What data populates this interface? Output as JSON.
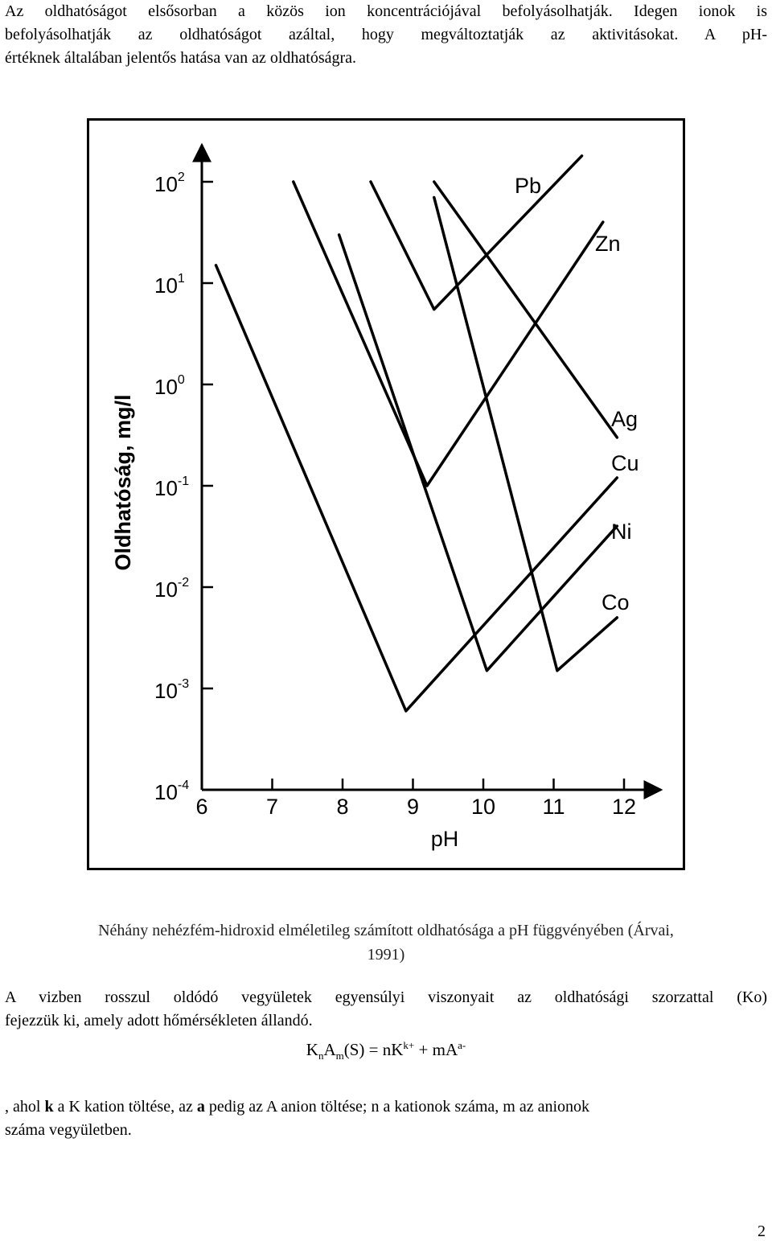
{
  "intro": {
    "line1": "Az oldhatóságot elsősorban a közös ion koncentrációjával befolyásolhatják. Idegen ionok is",
    "line2": "befolyásolhatják az oldhatóságot azáltal, hogy megváltoztatják az aktivitásokat. A pH-",
    "line3": "értéknek általában jelentős hatása van az oldhatóságra."
  },
  "chart_data": {
    "type": "line",
    "title": "",
    "xlabel": "pH",
    "ylabel": "Oldhatóság, mg/l",
    "y_scale": "log",
    "xlim": [
      6,
      12.8
    ],
    "ylim": [
      0.0001,
      300
    ],
    "x_ticks": [
      "6",
      "7",
      "8",
      "9",
      "10",
      "11",
      "12"
    ],
    "y_ticks": [
      {
        "base": "10",
        "exp": "2"
      },
      {
        "base": "10",
        "exp": "1"
      },
      {
        "base": "10",
        "exp": "0"
      },
      {
        "base": "10",
        "exp": "-1"
      },
      {
        "base": "10",
        "exp": "-2"
      },
      {
        "base": "10",
        "exp": "-3"
      },
      {
        "base": "10",
        "exp": "-4"
      }
    ],
    "series": [
      {
        "name": "Pb",
        "x": [
          8.4,
          9.3,
          11.4
        ],
        "y": [
          100,
          5.5,
          180
        ]
      },
      {
        "name": "Zn",
        "x": [
          7.3,
          9.2,
          11.7
        ],
        "y": [
          100,
          0.1,
          40
        ]
      },
      {
        "name": "Ag",
        "x": [
          9.3,
          11.9
        ],
        "y": [
          100,
          0.3
        ]
      },
      {
        "name": "Cu",
        "x": [
          6.2,
          8.9,
          11.9
        ],
        "y": [
          15,
          0.0006,
          0.12
        ]
      },
      {
        "name": "Ni",
        "x": [
          7.95,
          10.05,
          11.9
        ],
        "y": [
          30,
          0.0015,
          0.04
        ]
      },
      {
        "name": "Co",
        "x": [
          9.3,
          11.05,
          11.9
        ],
        "y": [
          70,
          0.0015,
          0.005
        ]
      }
    ],
    "legend_labels": [
      "Pb",
      "Zn",
      "Ag",
      "Cu",
      "Ni",
      "Co"
    ],
    "grid": false
  },
  "caption": {
    "line1": "Néhány nehézfém-hidroxid elméletileg számított oldhatósága a pH függvényében (Árvai,",
    "line2": "1991)"
  },
  "para2": {
    "line1": "A vizben rosszul oldódó vegyületek egyensúlyi viszonyait az oldhatósági szorzattal (Ko)",
    "line2": "fejezzük ki, amely adott hőmérsékleten állandó."
  },
  "formula": {
    "k1": "K",
    "n_sub": "n",
    "a1": "A",
    "m_sub": "m",
    "s_part": "(S) = nK",
    "k_sup": "k+",
    "plus_part": " + mA",
    "a_sup": "a-"
  },
  "para3": {
    "line1_pre": ", ahol ",
    "line1_k": "k",
    "line1_mid": " a K kation töltése, az ",
    "line1_a": "a",
    "line1_post": " pedig az A anion töltése; n a kationok száma, m az anionok",
    "line2": "száma vegyületben."
  },
  "page_number": "2"
}
